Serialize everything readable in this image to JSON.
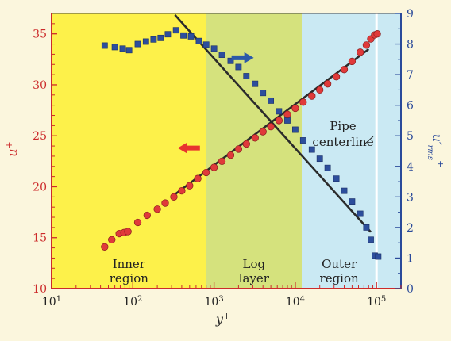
{
  "chart_data": {
    "type": "scatter",
    "x_scale": "log",
    "xlim": [
      10,
      200000
    ],
    "x_ticks": [
      10,
      100,
      1000,
      10000,
      100000
    ],
    "x_tick_labels": [
      {
        "base": "10",
        "exp": "1"
      },
      {
        "base": "10",
        "exp": "2"
      },
      {
        "base": "10",
        "exp": "3"
      },
      {
        "base": "10",
        "exp": "4"
      },
      {
        "base": "10",
        "exp": "5"
      }
    ],
    "xlabel": {
      "base": "y",
      "sup": "+"
    },
    "ylabel_left": {
      "base": "u",
      "sup": "+"
    },
    "ylabel_right": {
      "base": "u′",
      "sub": "rms",
      "sup": "+"
    },
    "ylim_left": [
      10,
      37
    ],
    "yticks_left": [
      10,
      15,
      20,
      25,
      30,
      35
    ],
    "ylim_right": [
      0,
      9
    ],
    "yticks_right": [
      0,
      1,
      2,
      3,
      4,
      5,
      6,
      7,
      8,
      9
    ],
    "colors": {
      "background": "#fbf6dd",
      "inner_region": "#fdf14a",
      "log_layer": "#d5e27d",
      "outer_region": "#cae9f3",
      "centerline": "#ffffff",
      "left_axis": "#cc2b2b",
      "right_axis": "#2a4a9a",
      "mean_marker": "#e03a3a",
      "rms_marker": "#2d4e9c",
      "arrow_left": "#e8332f",
      "arrow_right": "#2c5aa8",
      "fit_line": "#2b2b2b"
    },
    "regions": [
      {
        "label": "Inner region",
        "lines": [
          "Inner",
          "region"
        ],
        "x_start": 10,
        "x_end": 800
      },
      {
        "label": "Log layer",
        "lines": [
          "Log",
          "layer"
        ],
        "x_start": 800,
        "x_end": 12000
      },
      {
        "label": "Outer region",
        "lines": [
          "Outer",
          "region"
        ],
        "x_start": 12000,
        "x_end": 200000
      }
    ],
    "centerline": {
      "x": 100000,
      "label_lines": [
        "Pipe",
        "centerline"
      ]
    },
    "series": [
      {
        "axis": "left",
        "marker": "circle",
        "points": [
          [
            45,
            14.1
          ],
          [
            55,
            14.8
          ],
          [
            68,
            15.4
          ],
          [
            78,
            15.5
          ],
          [
            87,
            15.6
          ],
          [
            115,
            16.5
          ],
          [
            150,
            17.2
          ],
          [
            200,
            17.8
          ],
          [
            250,
            18.4
          ],
          [
            320,
            19.0
          ],
          [
            400,
            19.6
          ],
          [
            500,
            20.1
          ],
          [
            630,
            20.8
          ],
          [
            800,
            21.4
          ],
          [
            1000,
            21.9
          ],
          [
            1250,
            22.5
          ],
          [
            1600,
            23.1
          ],
          [
            2000,
            23.7
          ],
          [
            2500,
            24.2
          ],
          [
            3200,
            24.8
          ],
          [
            4000,
            25.4
          ],
          [
            5000,
            25.9
          ],
          [
            6300,
            26.5
          ],
          [
            8000,
            27.1
          ],
          [
            10000,
            27.7
          ],
          [
            12500,
            28.3
          ],
          [
            16000,
            28.9
          ],
          [
            20000,
            29.5
          ],
          [
            25000,
            30.1
          ],
          [
            32000,
            30.8
          ],
          [
            40000,
            31.5
          ],
          [
            50000,
            32.3
          ],
          [
            63000,
            33.2
          ],
          [
            75000,
            33.9
          ],
          [
            85000,
            34.5
          ],
          [
            95000,
            34.9
          ],
          [
            102000,
            35.0
          ]
        ]
      },
      {
        "axis": "right",
        "marker": "square",
        "points": [
          [
            45,
            7.95
          ],
          [
            60,
            7.9
          ],
          [
            75,
            7.85
          ],
          [
            90,
            7.8
          ],
          [
            115,
            8.0
          ],
          [
            145,
            8.08
          ],
          [
            180,
            8.15
          ],
          [
            220,
            8.2
          ],
          [
            270,
            8.32
          ],
          [
            340,
            8.45
          ],
          [
            420,
            8.28
          ],
          [
            520,
            8.25
          ],
          [
            650,
            8.1
          ],
          [
            800,
            7.98
          ],
          [
            1000,
            7.85
          ],
          [
            1250,
            7.65
          ],
          [
            1600,
            7.45
          ],
          [
            2000,
            7.25
          ],
          [
            2500,
            6.95
          ],
          [
            3200,
            6.7
          ],
          [
            4000,
            6.4
          ],
          [
            5000,
            6.15
          ],
          [
            6300,
            5.8
          ],
          [
            8000,
            5.5
          ],
          [
            10000,
            5.2
          ],
          [
            12500,
            4.85
          ],
          [
            16000,
            4.55
          ],
          [
            20000,
            4.25
          ],
          [
            25000,
            3.95
          ],
          [
            32000,
            3.6
          ],
          [
            40000,
            3.2
          ],
          [
            50000,
            2.85
          ],
          [
            63000,
            2.45
          ],
          [
            75000,
            2.0
          ],
          [
            85000,
            1.6
          ],
          [
            95000,
            1.08
          ],
          [
            105000,
            1.05
          ]
        ]
      }
    ],
    "fit_lines": [
      {
        "axis": "left",
        "from": [
          300,
          19.0
        ],
        "to": [
          80000,
          33.5
        ]
      },
      {
        "axis": "right",
        "from": [
          330,
          8.95
        ],
        "to": [
          85000,
          1.85
        ]
      }
    ],
    "arrows": [
      {
        "direction": "left",
        "x": 500,
        "y_right_axis": 4.6
      },
      {
        "direction": "right",
        "x": 2200,
        "y_right_axis": 7.55
      }
    ]
  }
}
